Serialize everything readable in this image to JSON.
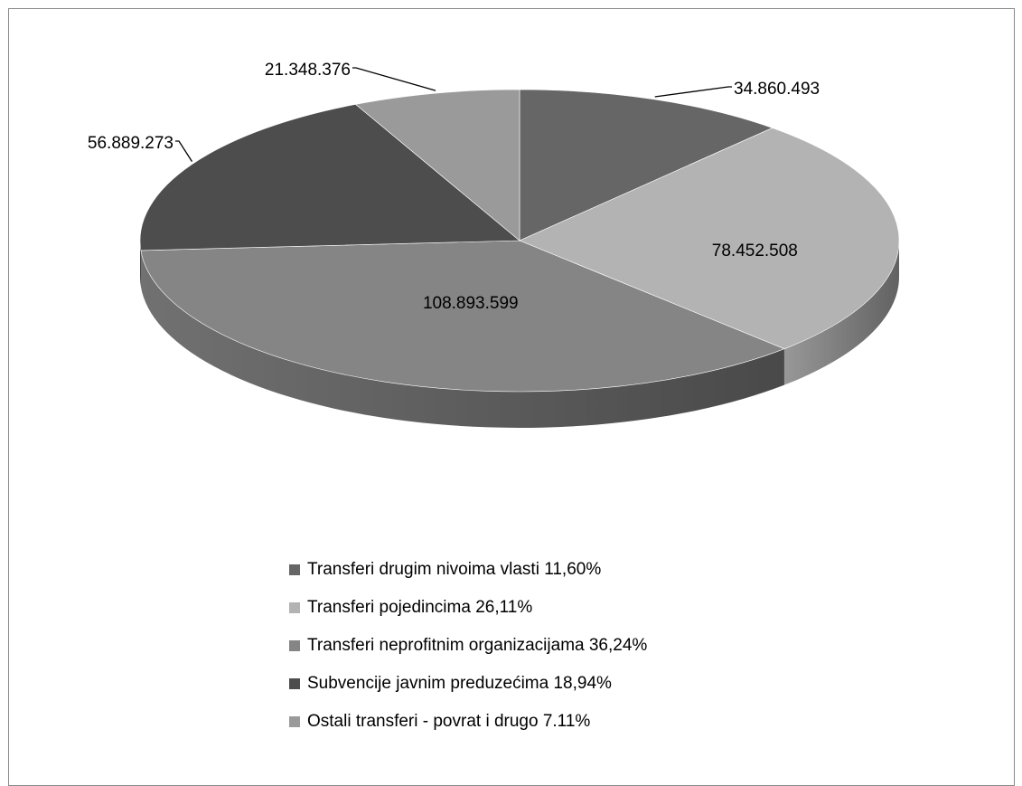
{
  "chart_data": {
    "type": "pie",
    "three_d": true,
    "legend_position": "bottom",
    "slices": [
      {
        "label": "Transferi drugim nivoima vlasti 11,60%",
        "value": 34860493,
        "value_label": "34.860.493",
        "color": "#666666"
      },
      {
        "label": "Transferi pojedincima 26,11%",
        "value": 78452508,
        "value_label": "78.452.508",
        "color": "#b3b3b3"
      },
      {
        "label": "Transferi neprofitnim organizacijama 36,24%",
        "value": 108893599,
        "value_label": "108.893.599",
        "color": "#858585"
      },
      {
        "label": "Subvencije javnim preduzećima 18,94%",
        "value": 56889273,
        "value_label": "56.889.273",
        "color": "#4d4d4d"
      },
      {
        "label": "Ostali transferi - povrat i drugo 7.11%",
        "value": 21348376,
        "value_label": "21.348.376",
        "color": "#9a9a9a"
      }
    ]
  }
}
